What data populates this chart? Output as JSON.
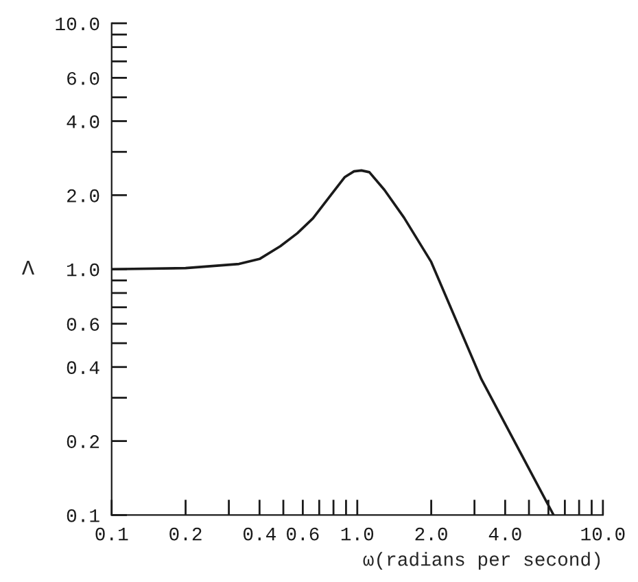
{
  "chart_data": {
    "type": "line",
    "log": "xy",
    "xlabel": "ω(radians per second)",
    "ylabel": "Λ",
    "x": [
      0.1,
      0.2,
      0.33,
      0.4,
      0.486,
      0.57,
      0.66,
      0.78,
      0.89,
      0.97,
      1.04,
      1.12,
      1.29,
      1.55,
      2.0,
      3.2,
      6.3
    ],
    "series": [
      {
        "color": "#1a1a1a",
        "values": [
          1.0,
          1.01,
          1.05,
          1.1,
          1.24,
          1.4,
          1.61,
          2.0,
          2.37,
          2.5,
          2.52,
          2.48,
          2.1,
          1.62,
          1.07,
          0.357,
          0.1
        ]
      }
    ],
    "xlim": [
      0.1,
      10.0
    ],
    "ylim": [
      0.1,
      10.0
    ],
    "xticks": [
      {
        "value": 0.1,
        "label": "0.1"
      },
      {
        "value": 0.2,
        "label": "0.2"
      },
      {
        "value": 0.3,
        "label": null
      },
      {
        "value": 0.4,
        "label": "0.4"
      },
      {
        "value": 0.5,
        "label": null
      },
      {
        "value": 0.6,
        "label": "0.6"
      },
      {
        "value": 0.7,
        "label": null
      },
      {
        "value": 0.8,
        "label": null
      },
      {
        "value": 0.9,
        "label": null
      },
      {
        "value": 1.0,
        "label": "1.0"
      },
      {
        "value": 2.0,
        "label": "2.0"
      },
      {
        "value": 3.0,
        "label": null
      },
      {
        "value": 4.0,
        "label": "4.0"
      },
      {
        "value": 5.0,
        "label": null
      },
      {
        "value": 6.0,
        "label": null
      },
      {
        "value": 7.0,
        "label": null
      },
      {
        "value": 8.0,
        "label": null
      },
      {
        "value": 9.0,
        "label": null
      },
      {
        "value": 10.0,
        "label": "10.0"
      }
    ],
    "yticks": [
      {
        "value": 0.1,
        "label": "0.1"
      },
      {
        "value": 0.2,
        "label": "0.2"
      },
      {
        "value": 0.3,
        "label": null
      },
      {
        "value": 0.4,
        "label": "0.4"
      },
      {
        "value": 0.5,
        "label": null
      },
      {
        "value": 0.6,
        "label": "0.6"
      },
      {
        "value": 0.7,
        "label": null
      },
      {
        "value": 0.8,
        "label": null
      },
      {
        "value": 0.9,
        "label": null
      },
      {
        "value": 1.0,
        "label": "1.0"
      },
      {
        "value": 2.0,
        "label": "2.0"
      },
      {
        "value": 3.0,
        "label": null
      },
      {
        "value": 4.0,
        "label": "4.0"
      },
      {
        "value": 5.0,
        "label": null
      },
      {
        "value": 6.0,
        "label": "6.0"
      },
      {
        "value": 7.0,
        "label": null
      },
      {
        "value": 8.0,
        "label": null
      },
      {
        "value": 9.0,
        "label": null
      },
      {
        "value": 10.0,
        "label": "10.0"
      }
    ],
    "grid": false,
    "legend": false,
    "marker": "none",
    "line_style": "solid"
  }
}
